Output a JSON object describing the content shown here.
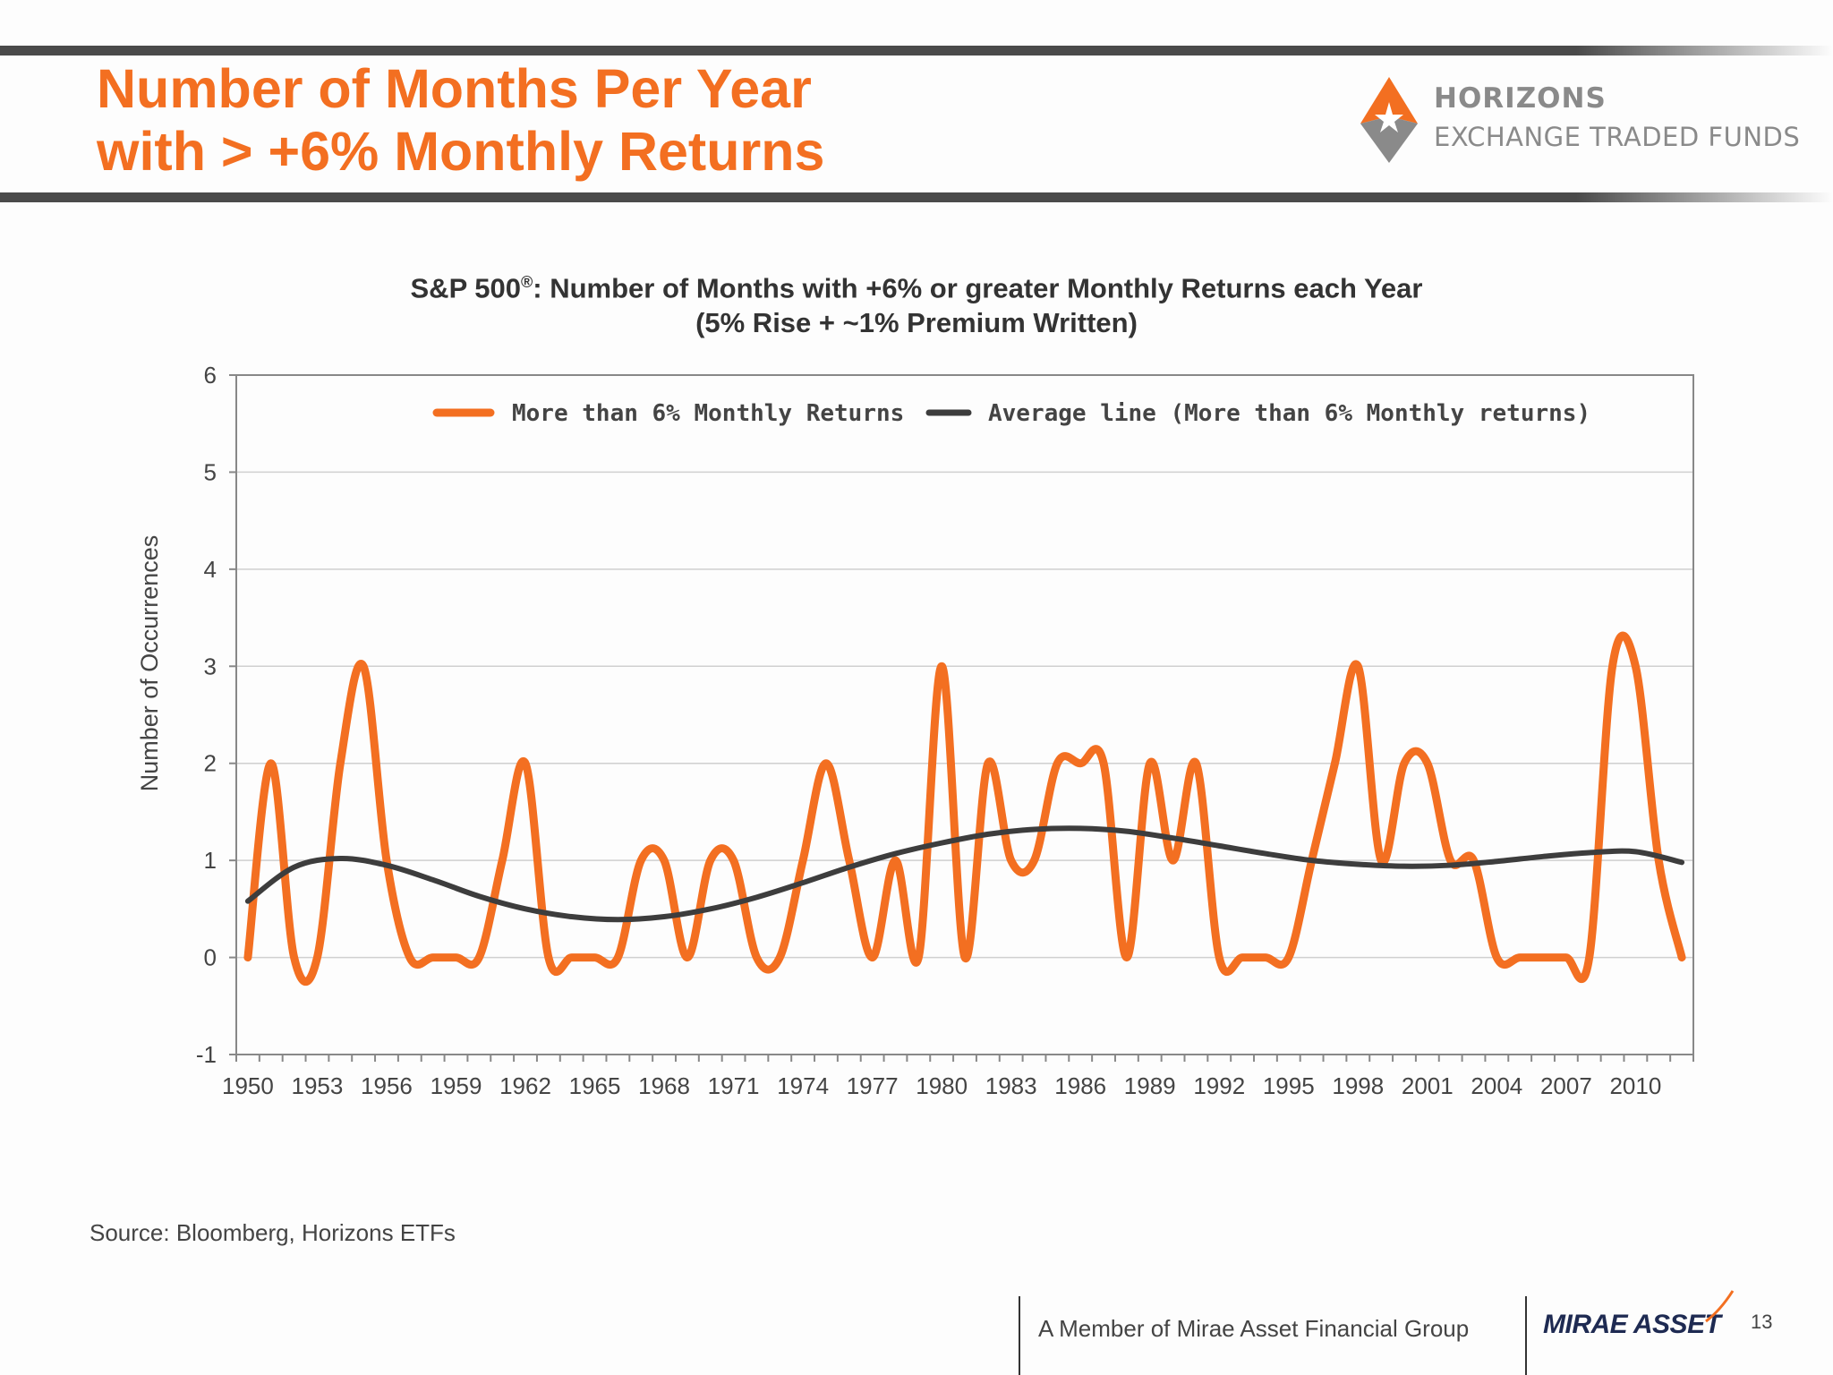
{
  "slide": {
    "title_line1": "Number of Months Per Year",
    "title_line2": "with > +6% Monthly Returns",
    "brand_name": "HORIZONS",
    "brand_sub": "EXCHANGE TRADED FUNDS",
    "source": "Source: Bloomberg, Horizons ETFs",
    "member_text": "A Member of Mirae Asset Financial Group",
    "mirae_logo_text": "MIRAE ASSET",
    "page_number": "13",
    "accent_color": "#f36f21",
    "dark_color": "#3d3d3d"
  },
  "chart_data": {
    "type": "line",
    "title_line1_prefix": "S&P 500",
    "title_line1_reg": "®",
    "title_line1_suffix": ": Number of Months with +6% or greater Monthly Returns each Year",
    "title_line2": "(5% Rise + ~1% Premium Written)",
    "ylabel": "Number of Occurrences",
    "xlabel": "",
    "ylim": [
      -1,
      6
    ],
    "yticks": [
      -1,
      0,
      1,
      2,
      3,
      4,
      5,
      6
    ],
    "xlim": [
      1949.5,
      2012.5
    ],
    "xtick_labels": [
      "1950",
      "1953",
      "1956",
      "1959",
      "1962",
      "1965",
      "1968",
      "1971",
      "1974",
      "1977",
      "1980",
      "1983",
      "1986",
      "1989",
      "1992",
      "1995",
      "1998",
      "2001",
      "2004",
      "2007",
      "2010"
    ],
    "grid": "horizontal",
    "legend_position": "top",
    "series": [
      {
        "name": "More than 6% Monthly Returns",
        "color": "#f36f21",
        "x": [
          1950,
          1951,
          1952,
          1953,
          1954,
          1955,
          1956,
          1957,
          1958,
          1959,
          1960,
          1961,
          1962,
          1963,
          1964,
          1965,
          1966,
          1967,
          1968,
          1969,
          1970,
          1971,
          1972,
          1973,
          1974,
          1975,
          1976,
          1977,
          1978,
          1979,
          1980,
          1981,
          1982,
          1983,
          1984,
          1985,
          1986,
          1987,
          1988,
          1989,
          1990,
          1991,
          1992,
          1993,
          1994,
          1995,
          1996,
          1997,
          1998,
          1999,
          2000,
          2001,
          2002,
          2003,
          2004,
          2005,
          2006,
          2007,
          2008,
          2009,
          2010,
          2011,
          2012
        ],
        "values": [
          0,
          2,
          0,
          0,
          2,
          3,
          1,
          0,
          0,
          0,
          0,
          1,
          2,
          0,
          0,
          0,
          0,
          1,
          1,
          0,
          1,
          1,
          0,
          0,
          1,
          2,
          1,
          0,
          1,
          0,
          3,
          0,
          2,
          1,
          1,
          2,
          2,
          2,
          0,
          2,
          1,
          2,
          0,
          0,
          0,
          0,
          1,
          2,
          3,
          1,
          2,
          2,
          1,
          1,
          0,
          0,
          0,
          0,
          0,
          3,
          3,
          1,
          0
        ]
      },
      {
        "name": "Average line (More than 6% Monthly returns)",
        "color": "#3d3d3d",
        "x": [
          1950,
          1952,
          1954,
          1956,
          1958,
          1960,
          1962,
          1964,
          1966,
          1968,
          1970,
          1972,
          1974,
          1976,
          1978,
          1980,
          1982,
          1984,
          1986,
          1988,
          1990,
          1992,
          1994,
          1996,
          1998,
          2000,
          2002,
          2004,
          2006,
          2008,
          2010,
          2012
        ],
        "values": [
          0.58,
          0.93,
          1.02,
          0.95,
          0.8,
          0.63,
          0.5,
          0.42,
          0.39,
          0.42,
          0.5,
          0.62,
          0.77,
          0.93,
          1.07,
          1.18,
          1.27,
          1.32,
          1.33,
          1.3,
          1.23,
          1.15,
          1.07,
          1.0,
          0.96,
          0.94,
          0.95,
          0.99,
          1.04,
          1.08,
          1.09,
          0.98
        ]
      }
    ]
  }
}
